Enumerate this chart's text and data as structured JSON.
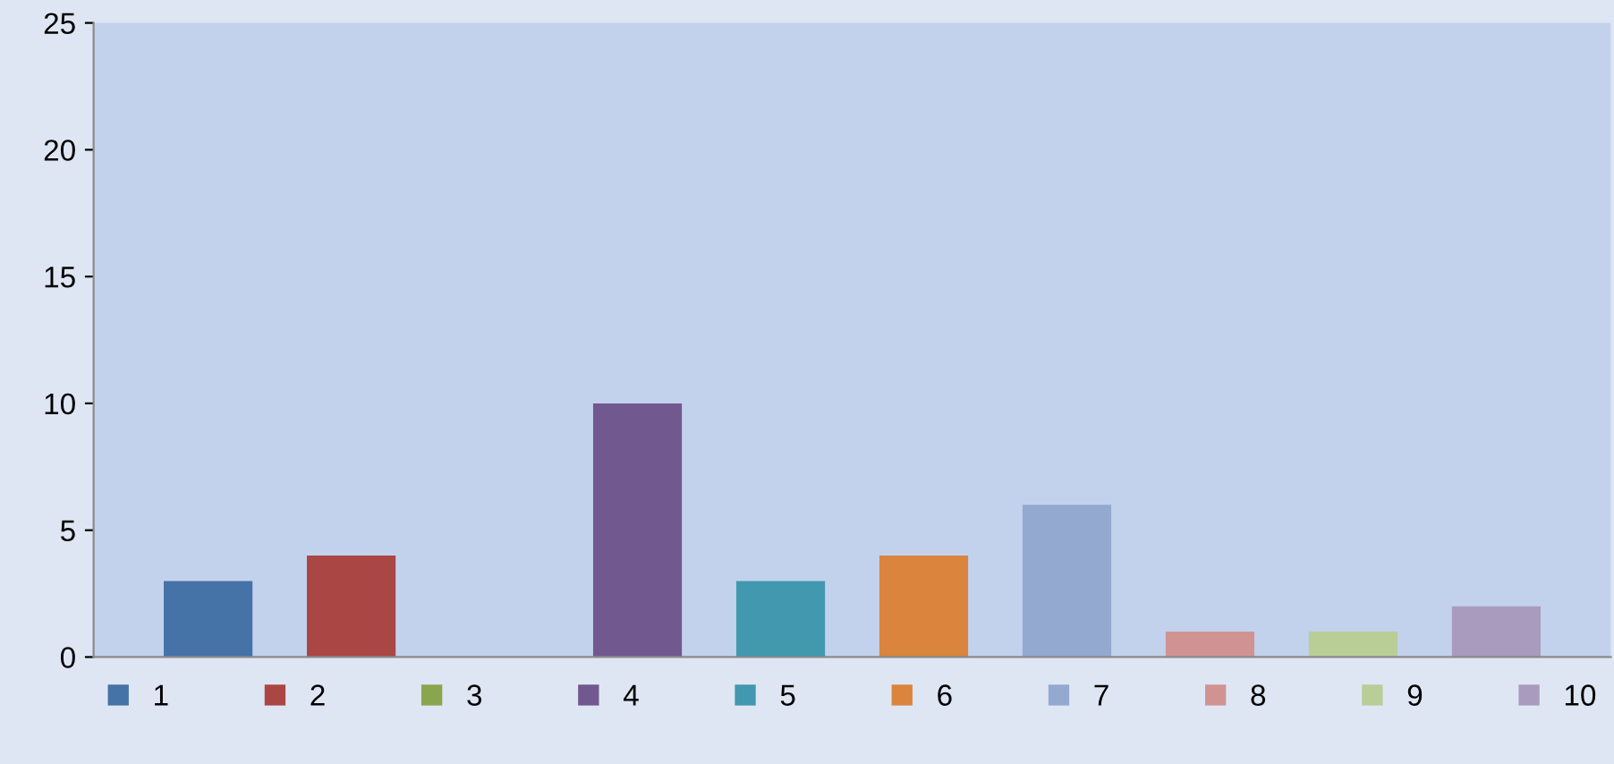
{
  "chart_data": {
    "type": "bar",
    "categories": [
      null
    ],
    "series": [
      {
        "name": "1",
        "color": "#4572a7",
        "values": [
          3
        ]
      },
      {
        "name": "2",
        "color": "#aa4643",
        "values": [
          4
        ]
      },
      {
        "name": "3",
        "color": "#89a54e",
        "values": [
          0
        ]
      },
      {
        "name": "4",
        "color": "#71588f",
        "values": [
          10
        ]
      },
      {
        "name": "5",
        "color": "#4198af",
        "values": [
          3
        ]
      },
      {
        "name": "6",
        "color": "#db843d",
        "values": [
          4
        ]
      },
      {
        "name": "7",
        "color": "#93a9cf",
        "values": [
          6
        ]
      },
      {
        "name": "8",
        "color": "#d19392",
        "values": [
          1
        ]
      },
      {
        "name": "9",
        "color": "#b9cd96",
        "values": [
          1
        ]
      },
      {
        "name": "10",
        "color": "#a99bbd",
        "values": [
          2
        ]
      }
    ],
    "ylim": [
      0,
      25
    ],
    "yticks": [
      0,
      5,
      10,
      15,
      20,
      25
    ],
    "grid": false,
    "legend": "bottom"
  }
}
